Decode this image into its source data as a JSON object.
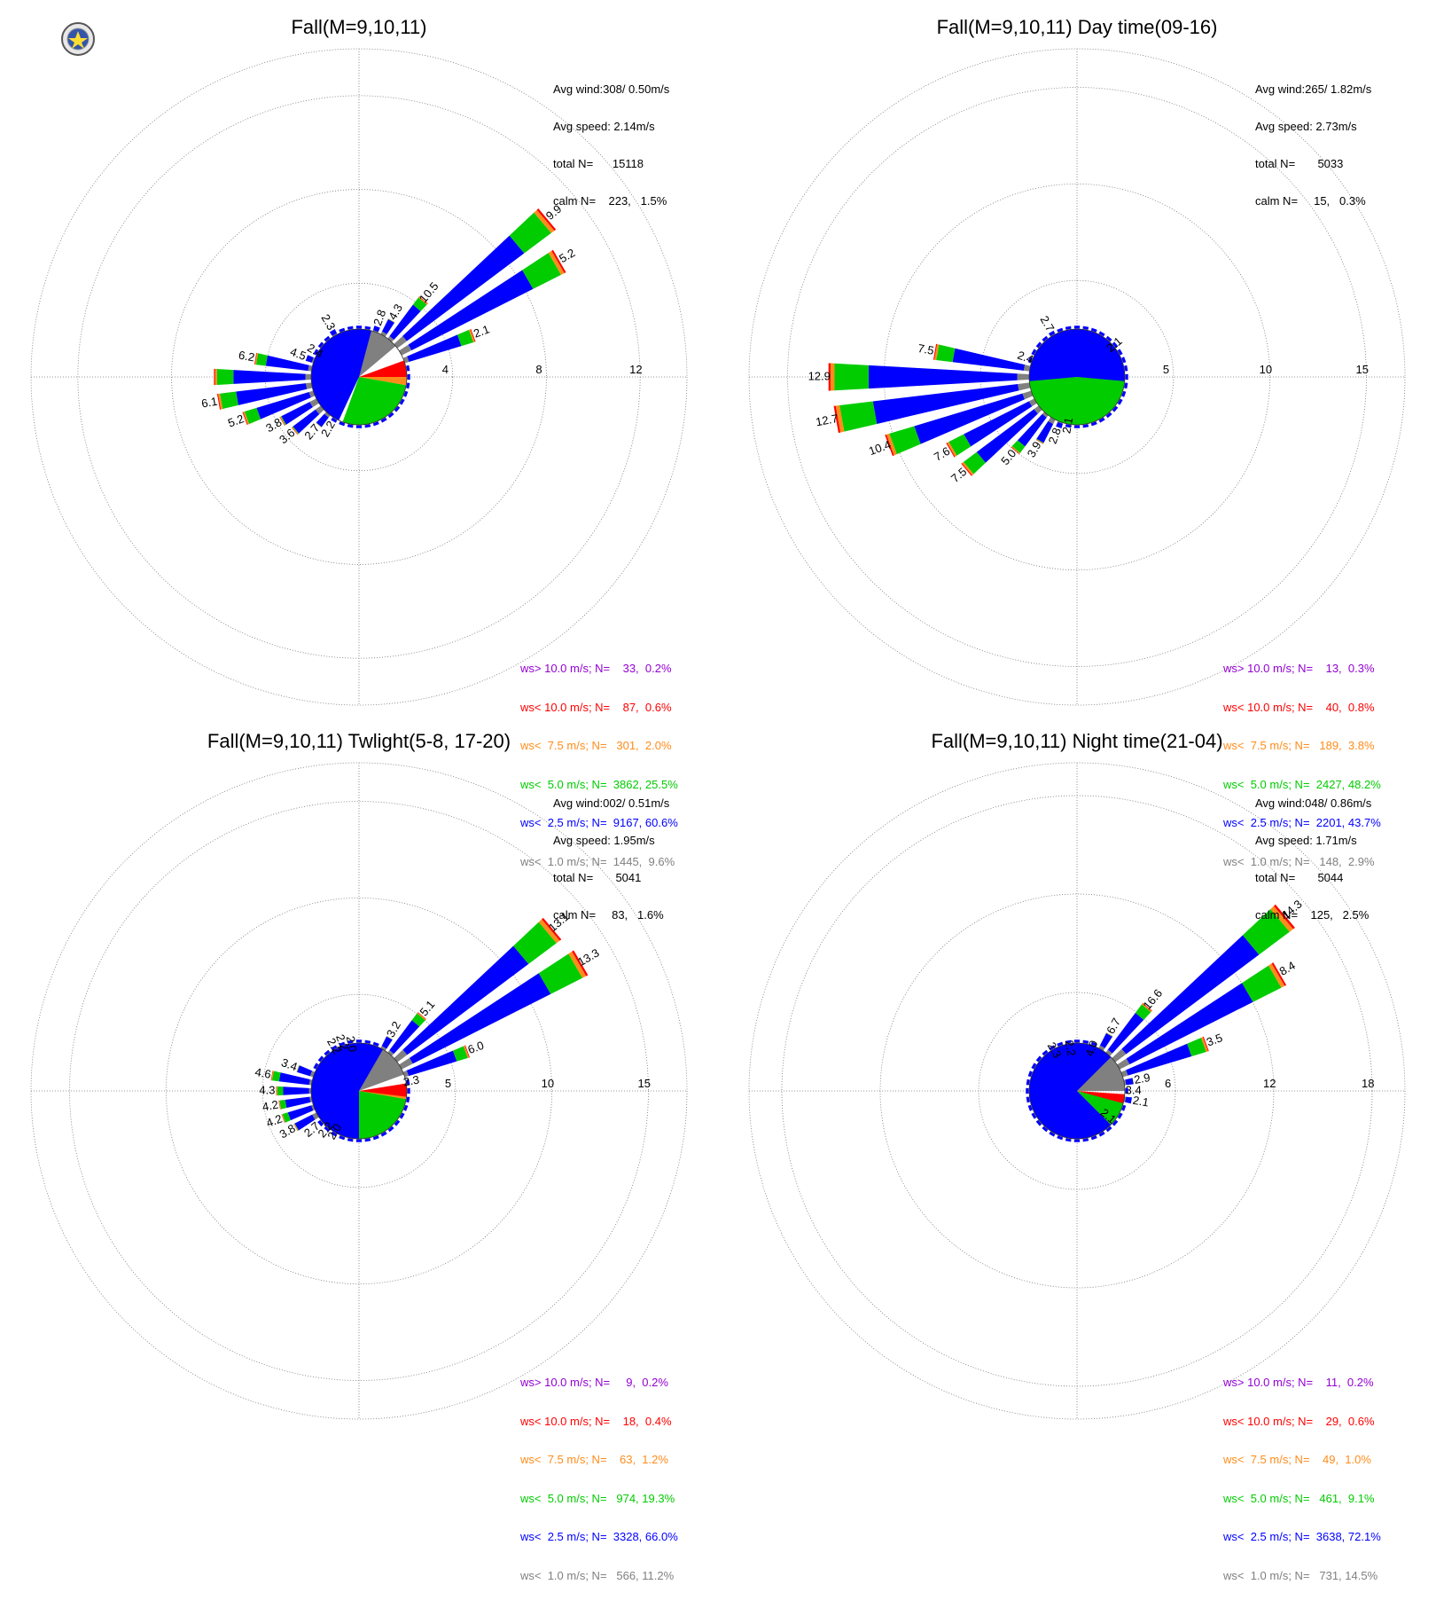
{
  "logo": {
    "text_severe": "Severe",
    "text_storm": "Storm",
    "text_lab": "Lab."
  },
  "legend_colors": [
    "#9400D3",
    "#FF0000",
    "#FF8C1A",
    "#00CC00",
    "#0000FF",
    "#808080"
  ],
  "chart_data": [
    {
      "type": "windrose",
      "title": "Fall(M=9,10,11)",
      "radial_ticks": [
        4,
        8,
        12
      ],
      "rmax": 14,
      "stats": {
        "avg_wind": "Avg wind:308/ 0.50m/s",
        "avg_speed": "Avg speed: 2.14m/s",
        "total": "total N=      15118",
        "calm": "calm N=    223,   1.5%"
      },
      "legend": [
        "ws> 10.0 m/s; N=    33,  0.2%",
        "ws< 10.0 m/s; N=    87,  0.6%",
        "ws<  7.5 m/s; N=   301,  2.0%",
        "ws<  5.0 m/s; N=  3862, 25.5%",
        "ws<  2.5 m/s; N=  9167, 60.6%",
        "ws<  1.0 m/s; N=  1445,  9.6%"
      ],
      "pie": [
        {
          "dir": 20,
          "span": 60,
          "cls": 5
        },
        {
          "dir": 80,
          "span": 20,
          "cls": 1
        },
        {
          "dir": 95,
          "span": 10,
          "cls": 2
        },
        {
          "dir": 150,
          "span": 100,
          "cls": 3
        },
        {
          "dir": 290,
          "span": 170,
          "cls": 4
        }
      ],
      "bars": [
        {
          "dir": 0,
          "total": 1.9
        },
        {
          "dir": 10,
          "total": 2.0
        },
        {
          "dir": 20,
          "total": 2.3
        },
        {
          "dir": 30,
          "total": 2.8
        },
        {
          "dir": 40,
          "total": 4.3
        },
        {
          "dir": 50,
          "total": 10.5
        },
        {
          "dir": 60,
          "total": 9.9
        },
        {
          "dir": 70,
          "total": 5.2
        },
        {
          "dir": 80,
          "total": 2.1
        },
        {
          "dir": 90,
          "total": 1.5
        },
        {
          "dir": 100,
          "total": 1.5
        },
        {
          "dir": 110,
          "total": 1.4
        },
        {
          "dir": 120,
          "total": 1.4
        },
        {
          "dir": 130,
          "total": 1.4
        },
        {
          "dir": 140,
          "total": 1.4
        },
        {
          "dir": 150,
          "total": 1.4
        },
        {
          "dir": 160,
          "total": 1.4
        },
        {
          "dir": 170,
          "total": 1.4
        },
        {
          "dir": 180,
          "total": 1.4
        },
        {
          "dir": 190,
          "total": 1.5
        },
        {
          "dir": 200,
          "total": 1.6
        },
        {
          "dir": 210,
          "total": 2.2
        },
        {
          "dir": 220,
          "total": 2.7
        },
        {
          "dir": 230,
          "total": 3.6
        },
        {
          "dir": 240,
          "total": 3.8
        },
        {
          "dir": 250,
          "total": 5.2
        },
        {
          "dir": 260,
          "total": 6.1
        },
        {
          "dir": 270,
          "total": 6.2
        },
        {
          "dir": 280,
          "total": 4.5
        },
        {
          "dir": 290,
          "total": 2.4
        },
        {
          "dir": 300,
          "total": 1.8
        },
        {
          "dir": 310,
          "total": 1.9
        },
        {
          "dir": 320,
          "total": 2.0
        },
        {
          "dir": 330,
          "total": 2.3
        },
        {
          "dir": 340,
          "total": 2.0
        },
        {
          "dir": 350,
          "total": 1.9
        }
      ],
      "labels": [
        {
          "dir": 330,
          "text": "2.3"
        },
        {
          "dir": 20,
          "text": "2.8"
        },
        {
          "dir": 30,
          "text": "4.3"
        },
        {
          "dir": 40,
          "text": "10.5"
        },
        {
          "dir": 50,
          "text": "9.9"
        },
        {
          "dir": 60,
          "text": "5.2"
        },
        {
          "dir": 70,
          "text": "2.1"
        },
        {
          "dir": 300,
          "text": "2.4"
        },
        {
          "dir": 290,
          "text": "4.5"
        },
        {
          "dir": 280,
          "text": "6.2"
        },
        {
          "dir": 260,
          "text": "6.1"
        },
        {
          "dir": 250,
          "text": "5.2"
        },
        {
          "dir": 240,
          "text": "3.8"
        },
        {
          "dir": 230,
          "text": "3.6"
        },
        {
          "dir": 220,
          "text": "2.7"
        },
        {
          "dir": 210,
          "text": "2.2"
        }
      ]
    },
    {
      "type": "windrose",
      "title": "Fall(M=9,10,11) Day time(09-16)",
      "radial_ticks": [
        5,
        10,
        15
      ],
      "rmax": 17,
      "stats": {
        "avg_wind": "Avg wind:265/ 1.82m/s",
        "avg_speed": "Avg speed: 2.73m/s",
        "total": "total N=       5033",
        "calm": "calm N=     15,   0.3%"
      },
      "legend": [
        "ws> 10.0 m/s; N=    13,  0.3%",
        "ws< 10.0 m/s; N=    40,  0.8%",
        "ws<  7.5 m/s; N=   189,  3.8%",
        "ws<  5.0 m/s; N=  2427, 48.2%",
        "ws<  2.5 m/s; N=  2201, 43.7%",
        "ws<  1.0 m/s; N=   148,  2.9%"
      ],
      "pie": [
        {
          "dir": 60,
          "span": 30,
          "cls": 5
        },
        {
          "dir": 85,
          "span": 8,
          "cls": 1
        },
        {
          "dir": 93,
          "span": 6,
          "cls": 2
        },
        {
          "dir": 180,
          "span": 172,
          "cls": 3
        },
        {
          "dir": 360,
          "span": 190,
          "cls": 4
        }
      ],
      "bars": [
        {
          "dir": 0,
          "total": 1.8
        },
        {
          "dir": 10,
          "total": 1.8
        },
        {
          "dir": 20,
          "total": 1.9
        },
        {
          "dir": 30,
          "total": 2.0
        },
        {
          "dir": 40,
          "total": 2.0
        },
        {
          "dir": 50,
          "total": 2.1
        },
        {
          "dir": 60,
          "total": 1.8
        },
        {
          "dir": 70,
          "total": 1.4
        },
        {
          "dir": 80,
          "total": 0.8
        },
        {
          "dir": 90,
          "total": 0.6
        },
        {
          "dir": 100,
          "total": 0.6
        },
        {
          "dir": 110,
          "total": 0.6
        },
        {
          "dir": 120,
          "total": 0.7
        },
        {
          "dir": 130,
          "total": 0.9
        },
        {
          "dir": 140,
          "total": 1.1
        },
        {
          "dir": 150,
          "total": 1.3
        },
        {
          "dir": 160,
          "total": 1.5
        },
        {
          "dir": 170,
          "total": 1.7
        },
        {
          "dir": 180,
          "total": 1.8
        },
        {
          "dir": 190,
          "total": 2.1
        },
        {
          "dir": 200,
          "total": 2.8
        },
        {
          "dir": 210,
          "total": 3.9
        },
        {
          "dir": 220,
          "total": 5.0
        },
        {
          "dir": 230,
          "total": 7.5
        },
        {
          "dir": 240,
          "total": 7.6
        },
        {
          "dir": 250,
          "total": 10.4
        },
        {
          "dir": 260,
          "total": 12.7
        },
        {
          "dir": 270,
          "total": 12.9
        },
        {
          "dir": 280,
          "total": 7.5
        },
        {
          "dir": 290,
          "total": 2.4
        },
        {
          "dir": 300,
          "total": 1.6
        },
        {
          "dir": 310,
          "total": 1.5
        },
        {
          "dir": 320,
          "total": 1.6
        },
        {
          "dir": 330,
          "total": 2.7
        },
        {
          "dir": 340,
          "total": 1.6
        },
        {
          "dir": 350,
          "total": 1.7
        }
      ],
      "labels": [
        {
          "dir": 330,
          "text": "2.7"
        },
        {
          "dir": 50,
          "text": "2.1"
        },
        {
          "dir": 290,
          "text": "2.4"
        },
        {
          "dir": 280,
          "text": "7.5"
        },
        {
          "dir": 270,
          "text": "12.9"
        },
        {
          "dir": 260,
          "text": "12.7"
        },
        {
          "dir": 250,
          "text": "10.4"
        },
        {
          "dir": 240,
          "text": "7.6"
        },
        {
          "dir": 230,
          "text": "7.5"
        },
        {
          "dir": 220,
          "text": "5.0"
        },
        {
          "dir": 210,
          "text": "3.9"
        },
        {
          "dir": 200,
          "text": "2.8"
        },
        {
          "dir": 190,
          "text": "2.1"
        }
      ]
    },
    {
      "type": "windrose",
      "title": "Fall(M=9,10,11) Twlight(5-8, 17-20)",
      "radial_ticks": [
        5,
        10,
        15
      ],
      "rmax": 17,
      "stats": {
        "avg_wind": "Avg wind:002/ 0.51m/s",
        "avg_speed": "Avg speed: 1.95m/s",
        "total": "total N=       5041",
        "calm": "calm N=     83,   1.6%"
      },
      "legend": [
        "ws> 10.0 m/s; N=     9,  0.2%",
        "ws< 10.0 m/s; N=    18,  0.4%",
        "ws<  7.5 m/s; N=    63,  1.2%",
        "ws<  5.0 m/s; N=   974, 19.3%",
        "ws<  2.5 m/s; N=  3328, 66.0%",
        "ws<  1.0 m/s; N=   566, 11.2%"
      ],
      "pie": [
        {
          "dir": 35,
          "span": 70,
          "cls": 5
        },
        {
          "dir": 90,
          "span": 18,
          "cls": 1
        },
        {
          "dir": 100,
          "span": 6,
          "cls": 2
        },
        {
          "dir": 140,
          "span": 80,
          "cls": 3
        },
        {
          "dir": 285,
          "span": 210,
          "cls": 4
        }
      ],
      "bars": [
        {
          "dir": 0,
          "total": 2.1
        },
        {
          "dir": 10,
          "total": 2.1
        },
        {
          "dir": 20,
          "total": 2.2
        },
        {
          "dir": 30,
          "total": 3.2
        },
        {
          "dir": 40,
          "total": 5.1
        },
        {
          "dir": 50,
          "total": 13.1
        },
        {
          "dir": 60,
          "total": 13.3
        },
        {
          "dir": 70,
          "total": 6.0
        },
        {
          "dir": 80,
          "total": 2.3
        },
        {
          "dir": 90,
          "total": 1.5
        },
        {
          "dir": 100,
          "total": 1.5
        },
        {
          "dir": 110,
          "total": 1.4
        },
        {
          "dir": 120,
          "total": 1.4
        },
        {
          "dir": 130,
          "total": 1.4
        },
        {
          "dir": 140,
          "total": 1.4
        },
        {
          "dir": 150,
          "total": 1.4
        },
        {
          "dir": 160,
          "total": 1.4
        },
        {
          "dir": 170,
          "total": 1.4
        },
        {
          "dir": 180,
          "total": 1.4
        },
        {
          "dir": 190,
          "total": 1.5
        },
        {
          "dir": 200,
          "total": 1.6
        },
        {
          "dir": 210,
          "total": 2.0
        },
        {
          "dir": 220,
          "total": 2.2
        },
        {
          "dir": 230,
          "total": 2.7
        },
        {
          "dir": 240,
          "total": 3.8
        },
        {
          "dir": 250,
          "total": 4.2
        },
        {
          "dir": 260,
          "total": 4.2
        },
        {
          "dir": 270,
          "total": 4.3
        },
        {
          "dir": 280,
          "total": 4.6
        },
        {
          "dir": 290,
          "total": 3.4
        },
        {
          "dir": 300,
          "total": 1.8
        },
        {
          "dir": 310,
          "total": 1.9
        },
        {
          "dir": 320,
          "total": 2.0
        },
        {
          "dir": 330,
          "total": 2.2
        },
        {
          "dir": 340,
          "total": 2.2
        },
        {
          "dir": 350,
          "total": 2.0
        }
      ],
      "labels": [
        {
          "dir": 330,
          "text": "2.2"
        },
        {
          "dir": 340,
          "text": "2.2"
        },
        {
          "dir": 350,
          "text": "2.0"
        },
        {
          "dir": 30,
          "text": "3.2"
        },
        {
          "dir": 40,
          "text": "5.1"
        },
        {
          "dir": 50,
          "text": "13.1"
        },
        {
          "dir": 60,
          "text": "13.3"
        },
        {
          "dir": 70,
          "text": "6.0"
        },
        {
          "dir": 80,
          "text": "2.3"
        },
        {
          "dir": 290,
          "text": "3.4"
        },
        {
          "dir": 280,
          "text": "4.6"
        },
        {
          "dir": 270,
          "text": "4.3"
        },
        {
          "dir": 260,
          "text": "4.2"
        },
        {
          "dir": 250,
          "text": "4.2"
        },
        {
          "dir": 240,
          "text": "3.8"
        },
        {
          "dir": 230,
          "text": "2.7"
        },
        {
          "dir": 220,
          "text": "2.2"
        },
        {
          "dir": 210,
          "text": "2.0"
        }
      ]
    },
    {
      "type": "windrose",
      "title": "Fall(M=9,10,11) Night time(21-04)",
      "radial_ticks": [
        6,
        12,
        18
      ],
      "rmax": 20,
      "stats": {
        "avg_wind": "Avg wind:048/ 0.86m/s",
        "avg_speed": "Avg speed: 1.71m/s",
        "total": "total N=       5044",
        "calm": "calm N=    125,   2.5%"
      },
      "legend": [
        "ws> 10.0 m/s; N=    11,  0.2%",
        "ws< 10.0 m/s; N=    29,  0.6%",
        "ws<  7.5 m/s; N=    49,  1.0%",
        "ws<  5.0 m/s; N=   461,  9.1%",
        "ws<  2.5 m/s; N=  3638, 72.1%",
        "ws<  1.0 m/s; N=   731, 14.5%"
      ],
      "pie": [
        {
          "dir": 50,
          "span": 80,
          "cls": 5
        },
        {
          "dir": 100,
          "span": 12,
          "cls": 1
        },
        {
          "dir": 108,
          "span": 4,
          "cls": 2
        },
        {
          "dir": 120,
          "span": 30,
          "cls": 3
        },
        {
          "dir": 270,
          "span": 270,
          "cls": 4
        }
      ],
      "bars": [
        {
          "dir": 0,
          "total": 2.0
        },
        {
          "dir": 10,
          "total": 2.1
        },
        {
          "dir": 20,
          "total": 2.2
        },
        {
          "dir": 30,
          "total": 4.0
        },
        {
          "dir": 40,
          "total": 6.7
        },
        {
          "dir": 50,
          "total": 16.6
        },
        {
          "dir": 60,
          "total": 14.3
        },
        {
          "dir": 70,
          "total": 8.4
        },
        {
          "dir": 80,
          "total": 3.5
        },
        {
          "dir": 90,
          "total": 2.9
        },
        {
          "dir": 100,
          "total": 3.4
        },
        {
          "dir": 110,
          "total": 2.1
        },
        {
          "dir": 120,
          "total": 1.9
        },
        {
          "dir": 130,
          "total": 1.9
        },
        {
          "dir": 140,
          "total": 2.1
        },
        {
          "dir": 150,
          "total": 1.5
        },
        {
          "dir": 160,
          "total": 1.4
        },
        {
          "dir": 170,
          "total": 1.4
        },
        {
          "dir": 180,
          "total": 1.4
        },
        {
          "dir": 190,
          "total": 1.4
        },
        {
          "dir": 200,
          "total": 1.5
        },
        {
          "dir": 210,
          "total": 1.6
        },
        {
          "dir": 220,
          "total": 1.8
        },
        {
          "dir": 230,
          "total": 2.0
        },
        {
          "dir": 240,
          "total": 2.2
        },
        {
          "dir": 250,
          "total": 2.3
        },
        {
          "dir": 260,
          "total": 2.4
        },
        {
          "dir": 270,
          "total": 2.4
        },
        {
          "dir": 280,
          "total": 2.3
        },
        {
          "dir": 290,
          "total": 2.2
        },
        {
          "dir": 300,
          "total": 2.0
        },
        {
          "dir": 310,
          "total": 2.1
        },
        {
          "dir": 320,
          "total": 2.2
        },
        {
          "dir": 330,
          "total": 2.3
        },
        {
          "dir": 340,
          "total": 2.2
        },
        {
          "dir": 350,
          "total": 2.1
        }
      ],
      "labels": [
        {
          "dir": 330,
          "text": "2.3"
        },
        {
          "dir": 350,
          "text": "2.2"
        },
        {
          "dir": 20,
          "text": "4.0"
        },
        {
          "dir": 30,
          "text": "6.7"
        },
        {
          "dir": 40,
          "text": "16.6"
        },
        {
          "dir": 50,
          "text": "14.3"
        },
        {
          "dir": 60,
          "text": "8.4"
        },
        {
          "dir": 70,
          "text": "3.5"
        },
        {
          "dir": 80,
          "text": "2.9"
        },
        {
          "dir": 90,
          "text": "3.4"
        },
        {
          "dir": 100,
          "text": "2.1"
        },
        {
          "dir": 130,
          "text": "2.1"
        }
      ]
    }
  ]
}
